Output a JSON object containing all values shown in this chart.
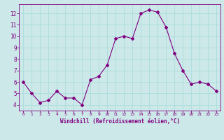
{
  "x": [
    0,
    1,
    2,
    3,
    4,
    5,
    6,
    7,
    8,
    9,
    10,
    11,
    12,
    13,
    14,
    15,
    16,
    17,
    18,
    19,
    20,
    21,
    22,
    23
  ],
  "y": [
    6.0,
    5.0,
    4.2,
    4.4,
    5.2,
    4.6,
    4.6,
    4.0,
    6.2,
    6.5,
    7.5,
    9.8,
    10.0,
    9.8,
    12.0,
    12.3,
    12.1,
    10.8,
    8.5,
    7.0,
    5.8,
    6.0,
    5.8,
    5.2
  ],
  "line_color": "#800080",
  "marker": "D",
  "marker_size": 2,
  "bg_color": "#cce8e8",
  "grid_color": "#aadddd",
  "xlabel": "Windchill (Refroidissement éolien,°C)",
  "xlabel_color": "#800080",
  "tick_color": "#800080",
  "ylim": [
    3.5,
    12.8
  ],
  "xlim": [
    -0.5,
    23.5
  ],
  "yticks": [
    4,
    5,
    6,
    7,
    8,
    9,
    10,
    11,
    12
  ],
  "xticks": [
    0,
    1,
    2,
    3,
    4,
    5,
    6,
    7,
    8,
    9,
    10,
    11,
    12,
    13,
    14,
    15,
    16,
    17,
    18,
    19,
    20,
    21,
    22,
    23
  ],
  "spine_color": "#800080",
  "fig_bg_color": "#cce8e8"
}
